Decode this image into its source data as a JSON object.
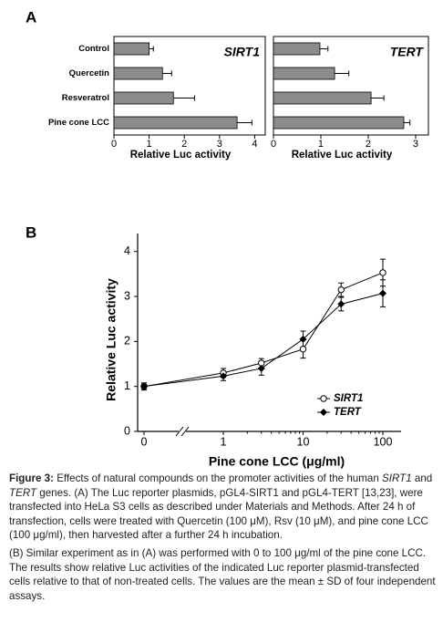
{
  "panels": [
    "A",
    "B"
  ],
  "chart_data": [
    {
      "type": "barh",
      "title": "SIRT1",
      "categories": [
        "Control",
        "Quercetin",
        "Resveratrol",
        "Pine cone LCC"
      ],
      "values": [
        1.0,
        1.38,
        1.69,
        3.5
      ],
      "errors": [
        0.12,
        0.26,
        0.6,
        0.42
      ],
      "color": "#8c8c8c",
      "xlim": [
        0,
        4.3
      ],
      "xticks": [
        0,
        1,
        2,
        3,
        4
      ],
      "xlabel": "Relative Luc activity"
    },
    {
      "type": "barh",
      "title": "TERT",
      "values": [
        0.98,
        1.29,
        2.06,
        2.75
      ],
      "errors": [
        0.17,
        0.3,
        0.27,
        0.13
      ],
      "color": "#8c8c8c",
      "xlim": [
        0,
        3.27
      ],
      "xticks": [
        0,
        1,
        2,
        3
      ],
      "xlabel": "Relative Luc activity"
    },
    {
      "type": "line",
      "x": [
        0,
        1,
        3,
        10,
        30,
        100
      ],
      "xticks": [
        0,
        1,
        10,
        100
      ],
      "xlog": true,
      "axis_break": true,
      "ylim": [
        0,
        4.4
      ],
      "yticks": [
        0,
        1,
        2,
        3,
        4
      ],
      "xlabel": "Pine cone LCC (μg/ml)",
      "ylabel": "Relative Luc activity",
      "legend": "lower right",
      "series": [
        {
          "name": "SIRT1",
          "color": "#000000",
          "marker": "open",
          "values": [
            1.0,
            1.3,
            1.52,
            1.83,
            3.15,
            3.53
          ],
          "errors": [
            0.08,
            0.1,
            0.1,
            0.2,
            0.15,
            0.3
          ]
        },
        {
          "name": "TERT",
          "color": "#000000",
          "marker": "filled",
          "values": [
            1.0,
            1.23,
            1.4,
            2.05,
            2.83,
            3.07
          ],
          "errors": [
            0.05,
            0.1,
            0.15,
            0.18,
            0.15,
            0.3
          ]
        }
      ]
    }
  ],
  "caption": {
    "paragraphs": [
      [
        {
          "text": "Figure 3:",
          "style": "bold"
        },
        {
          "text": " Effects of natural compounds on the promoter activities of the human "
        },
        {
          "text": "SIRT1",
          "style": "italic"
        },
        {
          "text": " and "
        },
        {
          "text": "TERT",
          "style": "italic"
        },
        {
          "text": " genes. (A) The Luc reporter plasmids, pGL4-SIRT1 and pGL4-TERT [13,23], were transfected into HeLa S3 cells as described under Materials and Methods. After 24 h of transfection, cells were treated with Quercetin (100 μM), Rsv (10 μM), and pine cone LCC (100 μg/ml), then harvested after a further 24 h incubation."
        }
      ],
      [
        {
          "text": "(B) Similar experiment as in (A) was performed with 0 to 100 μg/ml of the pine cone LCC. The results show relative Luc activities of the indicated Luc reporter plasmid-transfected cells relative to that of non-treated cells. The values are the mean ± SD of four independent assays."
        }
      ]
    ]
  }
}
